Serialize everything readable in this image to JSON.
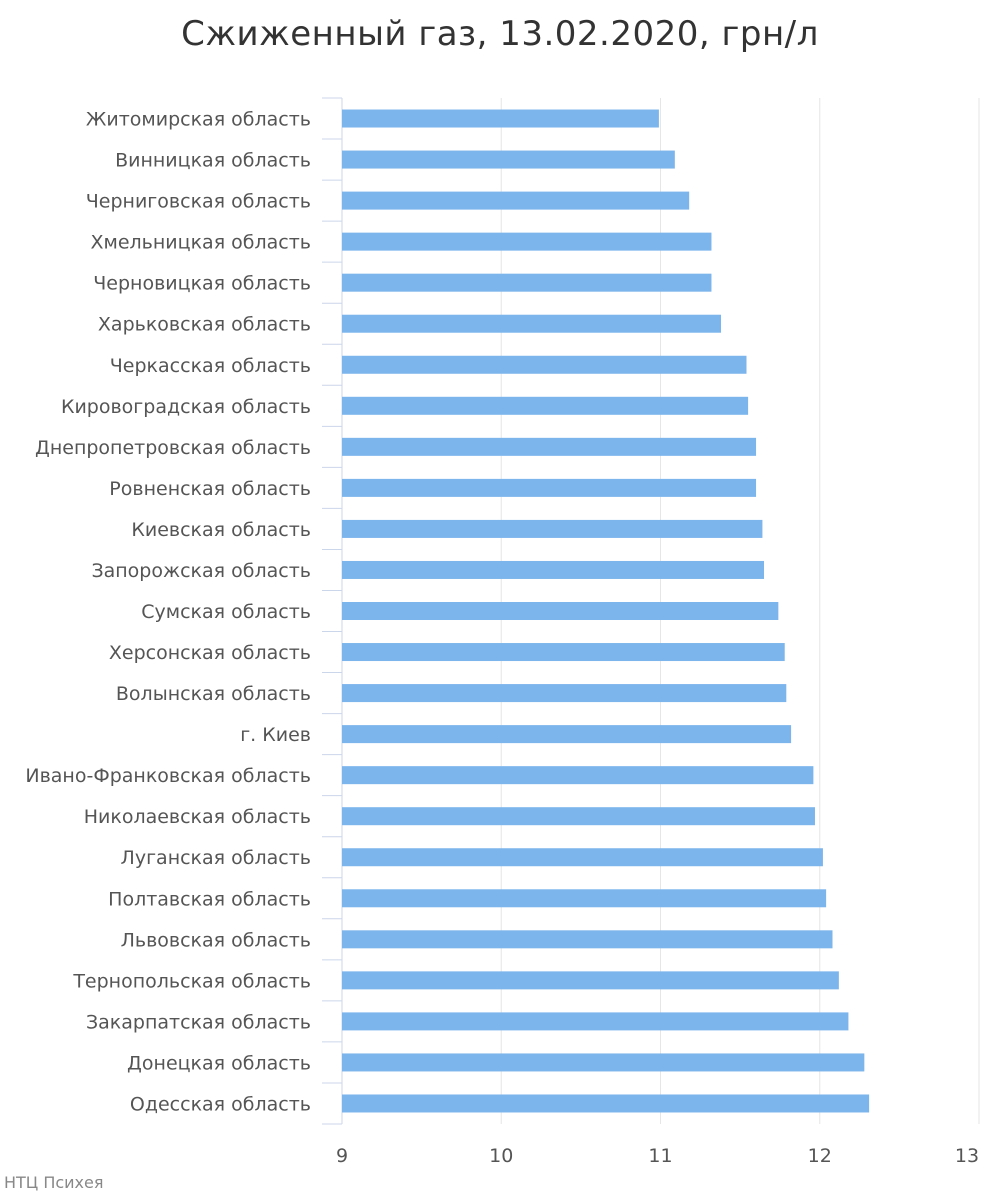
{
  "credit": "НТЦ Психея",
  "colors": {
    "bar": "#7cb5ec",
    "grid": "#e6e6e6",
    "axis": "#ccd6eb",
    "text": "#555555",
    "title": "#333333"
  },
  "chart_data": {
    "type": "bar",
    "orientation": "horizontal",
    "title": "Сжиженный газ, 13.02.2020, грн/л",
    "xlabel": "",
    "ylabel": "",
    "xlim": [
      9,
      13
    ],
    "ticks": [
      "9",
      "10",
      "11",
      "12",
      "13"
    ],
    "tick_values": [
      9,
      10,
      11,
      12,
      13
    ],
    "grid": true,
    "categories": [
      "Житомирская область",
      "Винницкая область",
      "Черниговская область",
      "Хмельницкая область",
      "Черновицкая область",
      "Харьковская область",
      "Черкасская область",
      "Кировоградская область",
      "Днепропетровская область",
      "Ровненская область",
      "Киевская область",
      "Запорожская область",
      "Сумская область",
      "Херсонская область",
      "Волынская область",
      "г. Киев",
      "Ивано-Франковская область",
      "Николаевская область",
      "Луганская область",
      "Полтавская область",
      "Львовская область",
      "Тернопольская область",
      "Закарпатская область",
      "Донецкая область",
      "Одесская область"
    ],
    "values": [
      10.99,
      11.09,
      11.18,
      11.32,
      11.32,
      11.38,
      11.54,
      11.55,
      11.6,
      11.6,
      11.64,
      11.65,
      11.74,
      11.78,
      11.79,
      11.82,
      11.96,
      11.97,
      12.02,
      12.04,
      12.08,
      12.12,
      12.18,
      12.28,
      12.31
    ]
  }
}
